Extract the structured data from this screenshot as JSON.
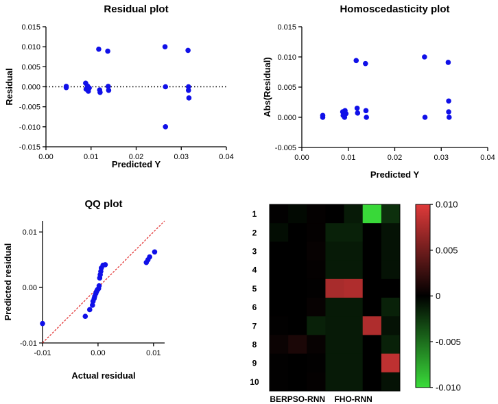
{
  "chart_data": [
    {
      "id": "residual",
      "type": "scatter",
      "title": "Residual plot",
      "xlabel": "Predicted Y",
      "ylabel": "Residual",
      "xlim": [
        0,
        0.04
      ],
      "ylim": [
        -0.015,
        0.015
      ],
      "xticks": [
        0,
        0.01,
        0.02,
        0.03,
        0.04
      ],
      "xtick_labels": [
        "0.00",
        "0.01",
        "0.02",
        "0.03",
        "0.04"
      ],
      "yticks": [
        -0.015,
        -0.01,
        -0.005,
        0,
        0.005,
        0.01,
        0.015
      ],
      "ytick_labels": [
        "-0.015",
        "-0.010",
        "-0.005",
        "0.000",
        "0.005",
        "0.010",
        "0.015"
      ],
      "reference_line": {
        "y": 0,
        "style": "dotted"
      },
      "points": [
        [
          0.0045,
          0.0001
        ],
        [
          0.0045,
          -0.0002
        ],
        [
          0.0088,
          0.0009
        ],
        [
          0.0089,
          -0.0006
        ],
        [
          0.0092,
          0.0002
        ],
        [
          0.0094,
          -0.0011
        ],
        [
          0.0096,
          -0.0003
        ],
        [
          0.0117,
          0.0094
        ],
        [
          0.0119,
          -0.0008
        ],
        [
          0.012,
          -0.0014
        ],
        [
          0.0137,
          0.0089
        ],
        [
          0.0138,
          0.0001
        ],
        [
          0.0139,
          -0.0009
        ],
        [
          0.0264,
          0.01
        ],
        [
          0.0265,
          0.0
        ],
        [
          0.0265,
          -0.01
        ],
        [
          0.0315,
          0.0091
        ],
        [
          0.0316,
          0.0
        ],
        [
          0.0316,
          -0.0009
        ],
        [
          0.0317,
          -0.0028
        ]
      ]
    },
    {
      "id": "homosced",
      "type": "scatter",
      "title": "Homoscedasticity plot",
      "xlabel": "Predicted Y",
      "ylabel": "Abs(Residual)",
      "xlim": [
        0,
        0.04
      ],
      "ylim": [
        -0.005,
        0.015
      ],
      "xticks": [
        0,
        0.01,
        0.02,
        0.03,
        0.04
      ],
      "xtick_labels": [
        "0.00",
        "0.01",
        "0.02",
        "0.03",
        "0.04"
      ],
      "yticks": [
        -0.005,
        0,
        0.005,
        0.01,
        0.015
      ],
      "ytick_labels": [
        "-0.005",
        "0.000",
        "0.005",
        "0.010",
        "0.015"
      ],
      "points": [
        [
          0.0045,
          0.0003
        ],
        [
          0.0045,
          0.0
        ],
        [
          0.0088,
          0.0009
        ],
        [
          0.0089,
          0.0003
        ],
        [
          0.0093,
          0.0011
        ],
        [
          0.0095,
          0.0006
        ],
        [
          0.0092,
          0.0
        ],
        [
          0.0117,
          0.0094
        ],
        [
          0.0119,
          0.0015
        ],
        [
          0.012,
          0.0007
        ],
        [
          0.0137,
          0.0089
        ],
        [
          0.0138,
          0.0011
        ],
        [
          0.0139,
          0.0
        ],
        [
          0.0264,
          0.01
        ],
        [
          0.0265,
          0.0
        ],
        [
          0.0315,
          0.0091
        ],
        [
          0.0316,
          0.0027
        ],
        [
          0.0316,
          0.0009
        ],
        [
          0.0317,
          0.0
        ]
      ]
    },
    {
      "id": "qq",
      "type": "scatter",
      "title": "QQ plot",
      "xlabel": "Actual residual",
      "ylabel": "Predicted residual",
      "xlim": [
        -0.01,
        0.012
      ],
      "ylim": [
        -0.01,
        0.012
      ],
      "xticks": [
        -0.01,
        0,
        0.01
      ],
      "xtick_labels": [
        "-0.01",
        "0.00",
        "0.01"
      ],
      "yticks": [
        -0.01,
        0,
        0.01
      ],
      "ytick_labels": [
        "-0.01",
        "0.00",
        "0.01"
      ],
      "reference_line": {
        "from": [
          -0.01,
          -0.01
        ],
        "to": [
          0.012,
          0.012
        ],
        "style": "dashed",
        "color": "#e02020"
      },
      "points": [
        [
          -0.01,
          -0.0065
        ],
        [
          -0.0023,
          -0.0052
        ],
        [
          -0.0015,
          -0.004
        ],
        [
          -0.001,
          -0.0032
        ],
        [
          -0.0009,
          -0.0025
        ],
        [
          -0.0007,
          -0.002
        ],
        [
          -0.0006,
          -0.0016
        ],
        [
          -0.0004,
          -0.0011
        ],
        [
          -0.0003,
          -0.0008
        ],
        [
          -0.0002,
          -0.0006
        ],
        [
          -0.0001,
          -0.0004
        ],
        [
          0.0001,
          -0.0002
        ],
        [
          0.0002,
          0.0003
        ],
        [
          0.0003,
          0.0017
        ],
        [
          0.0004,
          0.0023
        ],
        [
          0.0005,
          0.0029
        ],
        [
          0.0006,
          0.0035
        ],
        [
          0.0009,
          0.004
        ],
        [
          0.0013,
          0.0041
        ],
        [
          0.0087,
          0.0045
        ],
        [
          0.009,
          0.005
        ],
        [
          0.0093,
          0.0055
        ],
        [
          0.0102,
          0.0064
        ]
      ]
    },
    {
      "id": "heatmap",
      "type": "heatmap",
      "row_labels": [
        "1",
        "2",
        "3",
        "4",
        "5",
        "6",
        "7",
        "8",
        "9",
        "10"
      ],
      "column_labels": [
        "BERPSO-RNN",
        "FHO-RNN"
      ],
      "column_label_positions": [
        1,
        4
      ],
      "n_cols": 7,
      "colorbar": {
        "min": -0.01,
        "max": 0.01,
        "ticks": [
          0.01,
          0.005,
          0,
          -0.005,
          -0.01
        ],
        "tick_labels": [
          "0.010",
          "0.005",
          "0",
          "-0.005",
          "-0.010"
        ],
        "high_color": "#e03a3a",
        "mid_color": "#000000",
        "low_color": "#3adc3a"
      },
      "values": [
        [
          0.0001,
          -0.0004,
          0.0002,
          0.0,
          -0.0012,
          -0.0098,
          -0.0022
        ],
        [
          -0.0006,
          0.0,
          0.0002,
          -0.0015,
          -0.0015,
          0.0,
          -0.0008
        ],
        [
          0.0,
          0.0,
          0.0003,
          -0.0012,
          -0.0012,
          0.0,
          -0.0008
        ],
        [
          0.0,
          0.0,
          0.0002,
          -0.0012,
          -0.0012,
          0.0,
          -0.0008
        ],
        [
          0.0,
          0.0,
          0.0001,
          0.0075,
          0.0078,
          0.0,
          0.0
        ],
        [
          0.0,
          0.0,
          0.0003,
          -0.0012,
          -0.0012,
          0.0,
          -0.0015
        ],
        [
          0.0001,
          0.0,
          -0.0015,
          -0.0012,
          -0.0012,
          0.0078,
          -0.0008
        ],
        [
          0.0005,
          0.0012,
          0.0003,
          -0.0012,
          -0.0012,
          0.0,
          -0.0015
        ],
        [
          0.0001,
          0.0,
          0.0001,
          -0.0012,
          -0.0012,
          0.0,
          0.0085
        ],
        [
          0.0001,
          0.0,
          0.0002,
          -0.0012,
          -0.0012,
          0.0,
          -0.0008
        ]
      ]
    }
  ]
}
